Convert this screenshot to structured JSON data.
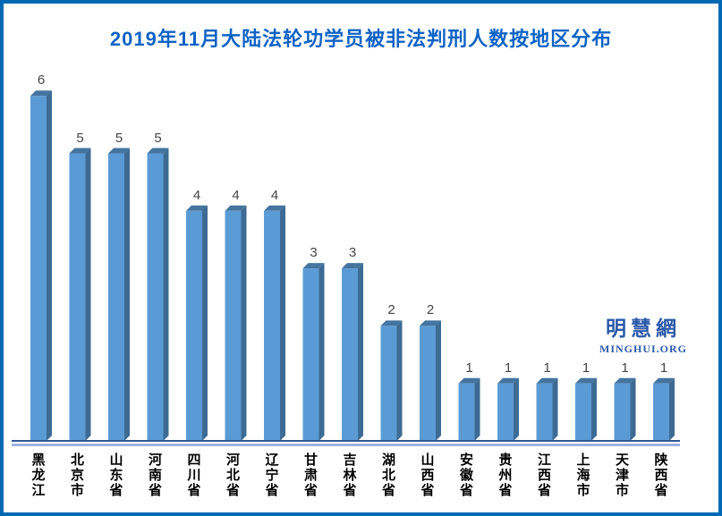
{
  "frame": {
    "border_color": "#0069B4",
    "background_color": "#FFFFFF"
  },
  "chart_data": {
    "type": "bar",
    "style": "3d-column",
    "title": "2019年11月大陆法轮功学员被非法判刑人数按地区分布",
    "categories": [
      "黑龙江",
      "北京市",
      "山东省",
      "河南省",
      "四川省",
      "河北省",
      "辽宁省",
      "甘肃省",
      "吉林省",
      "湖北省",
      "山西省",
      "安徽省",
      "贵州省",
      "江西省",
      "上海市",
      "天津市",
      "陕西省"
    ],
    "values": [
      6,
      5,
      5,
      5,
      4,
      4,
      4,
      3,
      3,
      2,
      2,
      1,
      1,
      1,
      1,
      1,
      1
    ],
    "value_labels_shown": true,
    "xlabel": "",
    "ylabel": "",
    "ylim": [
      0,
      6
    ],
    "grid": false,
    "legend": false,
    "y_axis_shown": false,
    "colors": {
      "bar_front": "#5B9BD5",
      "bar_side": "#3E6B94",
      "bar_top": "#44749F",
      "value_label": "#444444",
      "category_label": "#000000",
      "axis_dark": "#2F5597",
      "axis_light": "#9BB3DE",
      "title": "#0E63C5"
    }
  },
  "logo": {
    "chinese": "明慧網",
    "domain": "MINGHUI.ORG",
    "color": "#2B59A9"
  }
}
